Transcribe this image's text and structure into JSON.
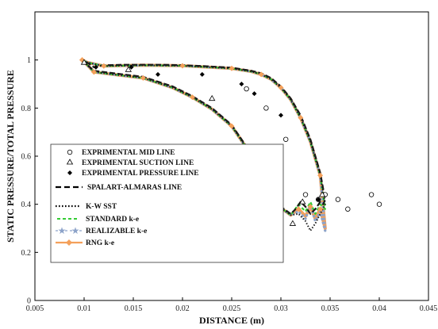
{
  "chart_data": {
    "type": "line",
    "title": "",
    "xlabel": "DISTANCE (m)",
    "ylabel": "STATIC PRESSURE/TOTAL PRESSURE",
    "xlim": [
      0.005,
      0.045
    ],
    "ylim": [
      0,
      1.2
    ],
    "xticks": [
      "0.005",
      "0.01",
      "0.015",
      "0.02",
      "0.025",
      "0.03",
      "0.035",
      "0.04",
      "0.045"
    ],
    "yticks": [
      "0",
      "0.2",
      "0.4",
      "0.6",
      "0.8",
      "1"
    ],
    "ytick_values": [
      0,
      0.2,
      0.4,
      0.6,
      0.8,
      1.0
    ],
    "grid": false,
    "legend_position": "center-left",
    "colors": {
      "k_epsilon": "#1a1a1a",
      "standard": "#33cc33",
      "realizable": "#8da3c9",
      "rng": "#f4a05a",
      "markers": "#000000"
    },
    "series": [
      {
        "name": "EXPRIMENTAL MID LINE",
        "style": "open-circle",
        "x": [
          0.0265,
          0.0285,
          0.0305,
          0.0325,
          0.0338,
          0.0345,
          0.0358,
          0.0368,
          0.0392,
          0.04
        ],
        "y": [
          0.88,
          0.8,
          0.67,
          0.44,
          0.42,
          0.44,
          0.42,
          0.38,
          0.44,
          0.4
        ]
      },
      {
        "name": "EXPRIMENTAL SUCTION LINE",
        "style": "open-triangle",
        "x": [
          0.01,
          0.0145,
          0.023,
          0.0285,
          0.0312,
          0.0322,
          0.0342
        ],
        "y": [
          0.99,
          0.96,
          0.84,
          0.43,
          0.32,
          0.41,
          0.44
        ]
      },
      {
        "name": "EXPRIMENTAL PRESSURE LINE",
        "style": "filled-diamond",
        "x": [
          0.0112,
          0.0148,
          0.0175,
          0.022,
          0.026,
          0.0273,
          0.03,
          0.0338
        ],
        "y": [
          0.97,
          0.97,
          0.94,
          0.94,
          0.9,
          0.86,
          0.77,
          0.42
        ]
      },
      {
        "name": "SPALART-ALMARAS LINE",
        "style": "dashed",
        "x": [
          0.0098,
          0.0103,
          0.011,
          0.013,
          0.016,
          0.019,
          0.021,
          0.023,
          0.025,
          0.0265,
          0.028,
          0.029,
          0.03,
          0.031,
          0.0315,
          0.032,
          0.0325,
          0.033,
          0.0335,
          0.034,
          0.0343,
          0.0345,
          0.034,
          0.033,
          0.032,
          0.031,
          0.03,
          0.029,
          0.028,
          0.027,
          0.025,
          0.022,
          0.02,
          0.018,
          0.016,
          0.014,
          0.012,
          0.011,
          0.0103,
          0.0098
        ],
        "y": [
          1.0,
          0.98,
          0.955,
          0.945,
          0.93,
          0.89,
          0.85,
          0.8,
          0.73,
          0.64,
          0.52,
          0.44,
          0.39,
          0.36,
          0.38,
          0.41,
          0.39,
          0.36,
          0.38,
          0.41,
          0.4,
          0.42,
          0.53,
          0.67,
          0.77,
          0.84,
          0.89,
          0.925,
          0.945,
          0.955,
          0.968,
          0.975,
          0.978,
          0.98,
          0.98,
          0.98,
          0.978,
          0.97,
          0.99,
          1.0
        ]
      },
      {
        "name": "K-W SST",
        "style": "dotted",
        "x": [
          0.0098,
          0.0103,
          0.011,
          0.013,
          0.016,
          0.019,
          0.021,
          0.023,
          0.025,
          0.0265,
          0.028,
          0.029,
          0.03,
          0.031,
          0.0318,
          0.0325,
          0.033,
          0.0335,
          0.034,
          0.0345,
          0.034,
          0.033,
          0.032,
          0.031,
          0.03,
          0.029,
          0.028,
          0.027,
          0.025,
          0.022,
          0.02,
          0.016,
          0.012,
          0.0103,
          0.0098
        ],
        "y": [
          1.0,
          0.98,
          0.95,
          0.94,
          0.925,
          0.885,
          0.845,
          0.795,
          0.725,
          0.635,
          0.515,
          0.435,
          0.385,
          0.355,
          0.36,
          0.33,
          0.29,
          0.32,
          0.36,
          0.4,
          0.52,
          0.66,
          0.76,
          0.835,
          0.885,
          0.92,
          0.94,
          0.952,
          0.965,
          0.972,
          0.976,
          0.978,
          0.975,
          0.99,
          1.0
        ]
      },
      {
        "name": "STANDARD k-e",
        "style": "green-dashed",
        "x": [
          0.0098,
          0.0103,
          0.011,
          0.013,
          0.016,
          0.019,
          0.021,
          0.023,
          0.025,
          0.0265,
          0.028,
          0.029,
          0.03,
          0.031,
          0.0318,
          0.0325,
          0.033,
          0.0335,
          0.034,
          0.0345,
          0.034,
          0.033,
          0.032,
          0.031,
          0.03,
          0.029,
          0.028,
          0.027,
          0.025,
          0.022,
          0.02,
          0.016,
          0.012,
          0.0103,
          0.0098
        ],
        "y": [
          1.0,
          0.98,
          0.95,
          0.94,
          0.925,
          0.885,
          0.845,
          0.795,
          0.725,
          0.635,
          0.515,
          0.435,
          0.385,
          0.355,
          0.4,
          0.37,
          0.41,
          0.36,
          0.4,
          0.38,
          0.52,
          0.66,
          0.76,
          0.835,
          0.885,
          0.92,
          0.94,
          0.952,
          0.965,
          0.972,
          0.976,
          0.978,
          0.975,
          0.99,
          1.0
        ]
      },
      {
        "name": "REALIZABLE k-e",
        "style": "star",
        "x": [
          0.0098,
          0.0103,
          0.011,
          0.013,
          0.016,
          0.019,
          0.021,
          0.023,
          0.025,
          0.0265,
          0.028,
          0.029,
          0.03,
          0.031,
          0.0318,
          0.0325,
          0.033,
          0.0335,
          0.034,
          0.0345,
          0.034,
          0.033,
          0.032,
          0.031,
          0.03,
          0.029,
          0.028,
          0.027,
          0.025,
          0.022,
          0.02,
          0.016,
          0.012,
          0.0103,
          0.0098
        ],
        "y": [
          1.0,
          0.98,
          0.95,
          0.94,
          0.925,
          0.885,
          0.845,
          0.795,
          0.725,
          0.635,
          0.515,
          0.435,
          0.385,
          0.355,
          0.37,
          0.34,
          0.4,
          0.33,
          0.37,
          0.29,
          0.52,
          0.66,
          0.76,
          0.835,
          0.885,
          0.92,
          0.94,
          0.952,
          0.965,
          0.972,
          0.976,
          0.978,
          0.975,
          0.99,
          1.0
        ]
      },
      {
        "name": "RNG k-e",
        "style": "orange-diamond",
        "x": [
          0.0098,
          0.0103,
          0.011,
          0.013,
          0.016,
          0.019,
          0.021,
          0.023,
          0.025,
          0.0265,
          0.028,
          0.029,
          0.03,
          0.031,
          0.0318,
          0.0325,
          0.033,
          0.0335,
          0.034,
          0.0345,
          0.034,
          0.033,
          0.032,
          0.031,
          0.03,
          0.029,
          0.028,
          0.027,
          0.025,
          0.022,
          0.02,
          0.016,
          0.012,
          0.0103,
          0.0098
        ],
        "y": [
          1.0,
          0.98,
          0.95,
          0.94,
          0.925,
          0.885,
          0.845,
          0.795,
          0.725,
          0.635,
          0.515,
          0.435,
          0.385,
          0.355,
          0.38,
          0.35,
          0.39,
          0.34,
          0.38,
          0.3,
          0.52,
          0.66,
          0.76,
          0.835,
          0.885,
          0.92,
          0.94,
          0.952,
          0.965,
          0.972,
          0.976,
          0.978,
          0.975,
          0.99,
          1.0
        ]
      }
    ]
  }
}
